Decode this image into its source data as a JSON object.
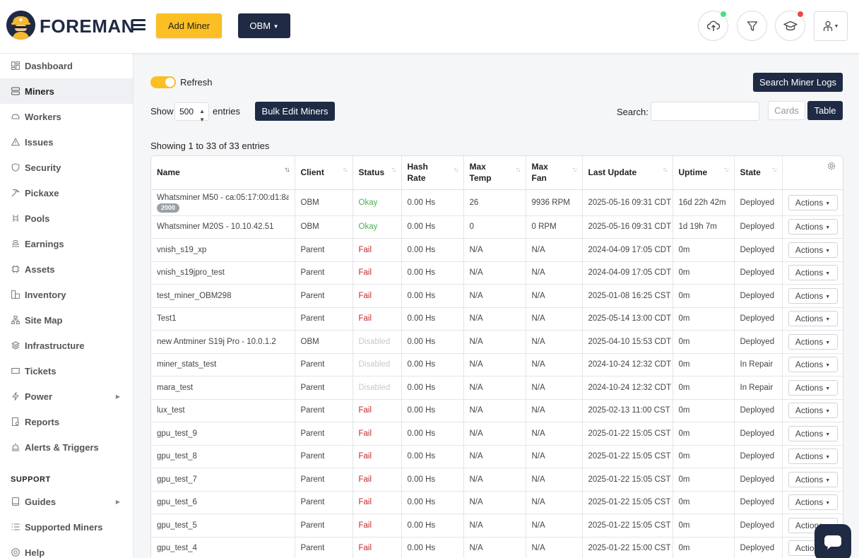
{
  "header": {
    "brand": "FOREMAN",
    "add_miner_label": "Add Miner",
    "org_label": "OBM",
    "colors": {
      "navy": "#1f2a44",
      "yellow": "#fbbf24",
      "notif_green": "#4ade80",
      "notif_red": "#ef4444"
    }
  },
  "sidebar": {
    "items": [
      {
        "label": "Dashboard",
        "icon": "dashboard-icon"
      },
      {
        "label": "Miners",
        "icon": "miners-icon",
        "active": true
      },
      {
        "label": "Workers",
        "icon": "workers-icon"
      },
      {
        "label": "Issues",
        "icon": "warning-icon"
      },
      {
        "label": "Security",
        "icon": "shield-icon"
      },
      {
        "label": "Pickaxe",
        "icon": "pickaxe-icon"
      },
      {
        "label": "Pools",
        "icon": "pools-icon"
      },
      {
        "label": "Earnings",
        "icon": "earnings-icon"
      },
      {
        "label": "Assets",
        "icon": "assets-icon"
      },
      {
        "label": "Inventory",
        "icon": "inventory-icon"
      },
      {
        "label": "Site Map",
        "icon": "sitemap-icon"
      },
      {
        "label": "Infrastructure",
        "icon": "layers-icon"
      },
      {
        "label": "Tickets",
        "icon": "ticket-icon"
      },
      {
        "label": "Power",
        "icon": "bolt-icon",
        "has_submenu": true
      },
      {
        "label": "Reports",
        "icon": "reports-icon"
      },
      {
        "label": "Alerts & Triggers",
        "icon": "alerts-icon"
      }
    ],
    "support_title": "SUPPORT",
    "support_items": [
      {
        "label": "Guides",
        "icon": "book-icon",
        "has_submenu": true
      },
      {
        "label": "Supported Miners",
        "icon": "list-icon"
      },
      {
        "label": "Help",
        "icon": "help-icon"
      }
    ]
  },
  "toolbar": {
    "refresh_label": "Refresh",
    "search_logs_label": "Search Miner Logs",
    "show_label": "Show",
    "page_size": "500",
    "entries_label": "entries",
    "bulk_edit_label": "Bulk Edit Miners",
    "search_label": "Search:",
    "search_value": "",
    "cards_label": "Cards",
    "table_label": "Table",
    "showing_text": "Showing 1 to 33 of 33 entries"
  },
  "table": {
    "columns": [
      "Name",
      "Client",
      "Status",
      "Hash Rate",
      "Max Temp",
      "Max Fan",
      "Last Update",
      "Uptime",
      "State"
    ],
    "column_lines": [
      [
        "Name"
      ],
      [
        "Client"
      ],
      [
        "Status"
      ],
      [
        "Hash",
        "Rate"
      ],
      [
        "Max",
        "Temp"
      ],
      [
        "Max",
        "Fan"
      ],
      [
        "Last Update"
      ],
      [
        "Uptime"
      ],
      [
        "State"
      ]
    ],
    "actions_label": "Actions",
    "rows": [
      {
        "name": "Whatsminer M50 - ca:05:17:00:d1:8a",
        "badge": "2000",
        "client": "OBM",
        "status": "Okay",
        "hash": "0.00 Hs",
        "temp": "26",
        "fan": "9936 RPM",
        "updated": "2025-05-16 09:31 CDT",
        "uptime": "16d 22h 42m",
        "state": "Deployed"
      },
      {
        "name": "Whatsminer M20S - 10.10.42.51",
        "client": "OBM",
        "status": "Okay",
        "hash": "0.00 Hs",
        "temp": "0",
        "fan": "0 RPM",
        "updated": "2025-05-16 09:31 CDT",
        "uptime": "1d 19h 7m",
        "state": "Deployed"
      },
      {
        "name": "vnish_s19_xp",
        "client": "Parent",
        "status": "Fail",
        "hash": "0.00 Hs",
        "temp": "N/A",
        "fan": "N/A",
        "updated": "2024-04-09 17:05 CDT",
        "uptime": "0m",
        "state": "Deployed"
      },
      {
        "name": "vnish_s19jpro_test",
        "client": "Parent",
        "status": "Fail",
        "hash": "0.00 Hs",
        "temp": "N/A",
        "fan": "N/A",
        "updated": "2024-04-09 17:05 CDT",
        "uptime": "0m",
        "state": "Deployed"
      },
      {
        "name": "test_miner_OBM298",
        "client": "Parent",
        "status": "Fail",
        "hash": "0.00 Hs",
        "temp": "N/A",
        "fan": "N/A",
        "updated": "2025-01-08 16:25 CST",
        "uptime": "0m",
        "state": "Deployed"
      },
      {
        "name": "Test1",
        "client": "Parent",
        "status": "Fail",
        "hash": "0.00 Hs",
        "temp": "N/A",
        "fan": "N/A",
        "updated": "2025-05-14 13:00 CDT",
        "uptime": "0m",
        "state": "Deployed"
      },
      {
        "name": "new Antminer S19j Pro - 10.0.1.2",
        "client": "OBM",
        "status": "Disabled",
        "hash": "0.00 Hs",
        "temp": "N/A",
        "fan": "N/A",
        "updated": "2025-04-10 15:53 CDT",
        "uptime": "0m",
        "state": "Deployed"
      },
      {
        "name": "miner_stats_test",
        "client": "Parent",
        "status": "Disabled",
        "hash": "0.00 Hs",
        "temp": "N/A",
        "fan": "N/A",
        "updated": "2024-10-24 12:32 CDT",
        "uptime": "0m",
        "state": "In Repair"
      },
      {
        "name": "mara_test",
        "client": "Parent",
        "status": "Disabled",
        "hash": "0.00 Hs",
        "temp": "N/A",
        "fan": "N/A",
        "updated": "2024-10-24 12:32 CDT",
        "uptime": "0m",
        "state": "In Repair"
      },
      {
        "name": "lux_test",
        "client": "Parent",
        "status": "Fail",
        "hash": "0.00 Hs",
        "temp": "N/A",
        "fan": "N/A",
        "updated": "2025-02-13 11:00 CST",
        "uptime": "0m",
        "state": "Deployed"
      },
      {
        "name": "gpu_test_9",
        "client": "Parent",
        "status": "Fail",
        "hash": "0.00 Hs",
        "temp": "N/A",
        "fan": "N/A",
        "updated": "2025-01-22 15:05 CST",
        "uptime": "0m",
        "state": "Deployed"
      },
      {
        "name": "gpu_test_8",
        "client": "Parent",
        "status": "Fail",
        "hash": "0.00 Hs",
        "temp": "N/A",
        "fan": "N/A",
        "updated": "2025-01-22 15:05 CST",
        "uptime": "0m",
        "state": "Deployed"
      },
      {
        "name": "gpu_test_7",
        "client": "Parent",
        "status": "Fail",
        "hash": "0.00 Hs",
        "temp": "N/A",
        "fan": "N/A",
        "updated": "2025-01-22 15:05 CST",
        "uptime": "0m",
        "state": "Deployed"
      },
      {
        "name": "gpu_test_6",
        "client": "Parent",
        "status": "Fail",
        "hash": "0.00 Hs",
        "temp": "N/A",
        "fan": "N/A",
        "updated": "2025-01-22 15:05 CST",
        "uptime": "0m",
        "state": "Deployed"
      },
      {
        "name": "gpu_test_5",
        "client": "Parent",
        "status": "Fail",
        "hash": "0.00 Hs",
        "temp": "N/A",
        "fan": "N/A",
        "updated": "2025-01-22 15:05 CST",
        "uptime": "0m",
        "state": "Deployed"
      },
      {
        "name": "gpu_test_4",
        "client": "Parent",
        "status": "Fail",
        "hash": "0.00 Hs",
        "temp": "N/A",
        "fan": "N/A",
        "updated": "2025-01-22 15:00 CST",
        "uptime": "0m",
        "state": "Deployed"
      }
    ]
  }
}
